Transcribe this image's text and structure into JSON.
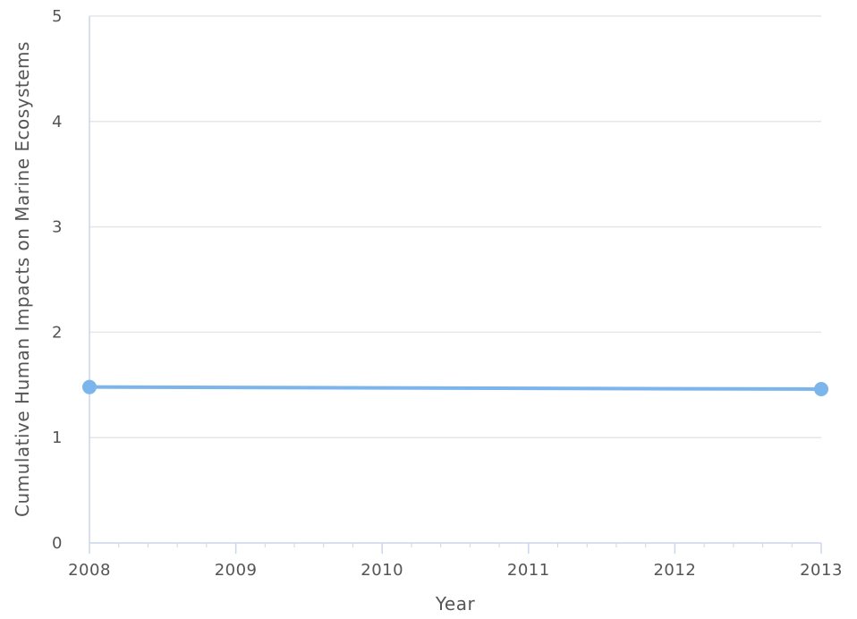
{
  "chart_data": {
    "type": "line",
    "title": "",
    "xlabel": "Year",
    "ylabel": "Cumulative Human Impacts on Marine Ecosystems",
    "x": [
      2008,
      2013
    ],
    "series": [
      {
        "name": "",
        "values": [
          1.48,
          1.46
        ]
      }
    ],
    "x_ticks": [
      "2008",
      "2009",
      "2010",
      "2011",
      "2012",
      "2013"
    ],
    "y_ticks": [
      "0",
      "1",
      "2",
      "3",
      "4",
      "5"
    ],
    "xlim": [
      2008,
      2013
    ],
    "ylim": [
      0,
      5
    ],
    "grid": true,
    "legend": "none",
    "colors": {
      "series": "#7cb5ec",
      "grid": "#e6e6e6",
      "axis": "#ccd6eb",
      "text": "#555555"
    }
  }
}
